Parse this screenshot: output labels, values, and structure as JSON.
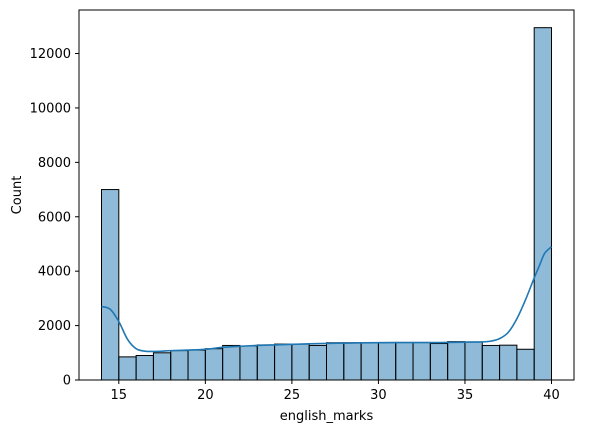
{
  "chart_data": {
    "type": "histogram",
    "title": "",
    "xlabel": "english_marks",
    "ylabel": "Count",
    "xlim": [
      12.7,
      41.3
    ],
    "ylim": [
      0,
      13600
    ],
    "x_ticks": [
      15,
      20,
      25,
      30,
      35,
      40
    ],
    "y_ticks": [
      0,
      2000,
      4000,
      6000,
      8000,
      10000,
      12000
    ],
    "grid": false,
    "legend": "none",
    "bar_color": "#1f77b4",
    "bar_opacity": 0.5,
    "edge_color": "#000000",
    "kde_color": "#1f77b4",
    "bins": [
      {
        "x0": 14.0,
        "x1": 15.0,
        "count": 7000
      },
      {
        "x0": 15.0,
        "x1": 16.0,
        "count": 850
      },
      {
        "x0": 16.0,
        "x1": 17.0,
        "count": 900
      },
      {
        "x0": 17.0,
        "x1": 18.0,
        "count": 1000
      },
      {
        "x0": 18.0,
        "x1": 19.0,
        "count": 1080
      },
      {
        "x0": 19.0,
        "x1": 20.0,
        "count": 1100
      },
      {
        "x0": 20.0,
        "x1": 21.0,
        "count": 1150
      },
      {
        "x0": 21.0,
        "x1": 22.0,
        "count": 1270
      },
      {
        "x0": 22.0,
        "x1": 23.0,
        "count": 1250
      },
      {
        "x0": 23.0,
        "x1": 24.0,
        "count": 1290
      },
      {
        "x0": 24.0,
        "x1": 25.0,
        "count": 1320
      },
      {
        "x0": 25.0,
        "x1": 26.0,
        "count": 1320
      },
      {
        "x0": 26.0,
        "x1": 27.0,
        "count": 1270
      },
      {
        "x0": 27.0,
        "x1": 28.0,
        "count": 1370
      },
      {
        "x0": 28.0,
        "x1": 29.0,
        "count": 1370
      },
      {
        "x0": 29.0,
        "x1": 30.0,
        "count": 1370
      },
      {
        "x0": 30.0,
        "x1": 31.0,
        "count": 1380
      },
      {
        "x0": 31.0,
        "x1": 32.0,
        "count": 1380
      },
      {
        "x0": 32.0,
        "x1": 33.0,
        "count": 1380
      },
      {
        "x0": 33.0,
        "x1": 34.0,
        "count": 1340
      },
      {
        "x0": 34.0,
        "x1": 35.0,
        "count": 1410
      },
      {
        "x0": 35.0,
        "x1": 36.0,
        "count": 1400
      },
      {
        "x0": 36.0,
        "x1": 37.0,
        "count": 1270
      },
      {
        "x0": 37.0,
        "x1": 38.0,
        "count": 1280
      },
      {
        "x0": 38.0,
        "x1": 39.0,
        "count": 1130
      },
      {
        "x0": 39.0,
        "x1": 40.0,
        "count": 12950
      }
    ],
    "kde": {
      "x": [
        14.0,
        14.5,
        15.0,
        15.5,
        16.0,
        16.5,
        17.0,
        17.5,
        18.0,
        19.0,
        20.0,
        21.0,
        22.0,
        23.0,
        24.0,
        25.0,
        26.0,
        27.0,
        28.0,
        29.0,
        30.0,
        31.0,
        32.0,
        33.0,
        34.0,
        35.0,
        36.0,
        36.5,
        37.0,
        37.5,
        38.0,
        38.5,
        39.0,
        39.3,
        39.6,
        40.0
      ],
      "y": [
        2700,
        2600,
        2150,
        1500,
        1150,
        1060,
        1050,
        1060,
        1080,
        1100,
        1130,
        1200,
        1240,
        1270,
        1290,
        1310,
        1330,
        1345,
        1355,
        1365,
        1370,
        1375,
        1375,
        1375,
        1380,
        1390,
        1400,
        1430,
        1520,
        1750,
        2250,
        2950,
        3750,
        4200,
        4650,
        4900
      ]
    }
  }
}
